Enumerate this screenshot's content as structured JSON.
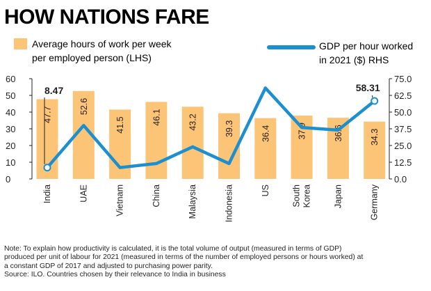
{
  "title": "HOW NATIONS FARE",
  "legend": {
    "bars_line1": "Average hours of work per week",
    "bars_line2": "per employed person (LHS)",
    "line_line1": "GDP per hour worked",
    "line_line2": "in 2021 ($) RHS"
  },
  "colors": {
    "bar": "#fcc476",
    "line": "#1c8fd0",
    "text": "#231f20",
    "axis": "#231f20"
  },
  "chart_data": {
    "type": "bar+line",
    "categories": [
      "India",
      "UAE",
      "Vietnam",
      "China",
      "Malaysia",
      "Indonesia",
      "US",
      "South Korea",
      "Japan",
      "Germany"
    ],
    "category_lines": [
      [
        "India"
      ],
      [
        "UAE"
      ],
      [
        "Vietnam"
      ],
      [
        "China"
      ],
      [
        "Malaysia"
      ],
      [
        "Indonesia"
      ],
      [
        "US"
      ],
      [
        "South",
        "Korea"
      ],
      [
        "Japan"
      ],
      [
        "Germany"
      ]
    ],
    "series": [
      {
        "name": "Average hours of work per week per employed person (LHS)",
        "type": "bar",
        "axis": "left",
        "values": [
          47.7,
          52.6,
          41.5,
          46.1,
          43.2,
          39.3,
          36.4,
          37.9,
          36.6,
          34.3
        ],
        "labels": [
          "47.7",
          "52.6",
          "41.5",
          "46.1",
          "43.2",
          "39.3",
          "36.4",
          "37.9",
          "36.6",
          "34.3"
        ]
      },
      {
        "name": "GDP per hour worked in 2021 ($) RHS",
        "type": "line",
        "axis": "right",
        "values": [
          8.47,
          40.0,
          8.5,
          11.5,
          24.0,
          11.5,
          68.0,
          38.5,
          36.5,
          58.31
        ]
      }
    ],
    "annotations": [
      {
        "category": "India",
        "text": "8.47"
      },
      {
        "category": "Germany",
        "text": "58.31"
      }
    ],
    "left_axis": {
      "ylim": [
        0,
        60
      ],
      "ticks": [
        "0",
        "10",
        "20",
        "30",
        "40",
        "50",
        "60"
      ]
    },
    "right_axis": {
      "ylim": [
        0,
        75
      ],
      "ticks": [
        "0.0",
        "12.5",
        "25.0",
        "37.5",
        "50.0",
        "62.5",
        "75.0"
      ]
    }
  },
  "note": {
    "line1": "Note: To explain how productivity is calculated, it is the total volume of output (measured in terms of GDP)",
    "line2": "produced per unit of labour for 2021 (measured  in terms of the number of employed persons or hours worked) at",
    "line3": "a constant GDP of 2017 and adjusted to purchasing power parity.",
    "source": "Source: ILO. Countries chosen by their relevance to India in business"
  }
}
